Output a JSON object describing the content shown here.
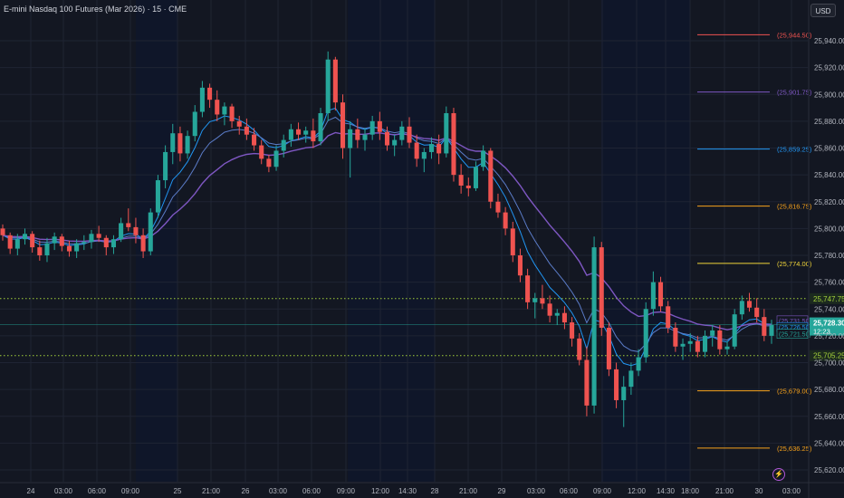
{
  "header": {
    "title": "E-mini Nasdaq 100 Futures (Mar 2026) · 15 · CME",
    "currency": "USD"
  },
  "icons": {
    "alert": "lightning-icon"
  },
  "colors": {
    "bg": "#131722",
    "session_bg": "#0f1629",
    "grid": "#1f2433",
    "up": "#26a69a",
    "down": "#ef5350",
    "ma1": "#2196f3",
    "ma2": "#5b7cc8",
    "ma3": "#7e57c2",
    "dotted": "#a3d13a",
    "current": "#26a69a"
  },
  "chart_data": {
    "type": "candlestick",
    "y_ticks": [
      "25,940.00",
      "25,920.00",
      "25,900.00",
      "25,880.00",
      "25,860.00",
      "25,840.00",
      "25,820.00",
      "25,800.00",
      "25,780.00",
      "25,760.00",
      "25,740.00",
      "25,720.00",
      "25,700.00",
      "25,680.00",
      "25,660.00",
      "25,640.00",
      "25,620.00"
    ],
    "x_ticks": [
      "24",
      "03:00",
      "06:00",
      "09:00",
      "25",
      "21:00",
      "26",
      "03:00",
      "06:00",
      "09:00",
      "12:00",
      "14:30",
      "28",
      "21:00",
      "29",
      "03:00",
      "06:00",
      "09:00",
      "12:00",
      "14:30",
      "18:00",
      "21:00",
      "30",
      "03:00"
    ],
    "levels": [
      {
        "label": "(25,944.50)",
        "value": 25944.5,
        "color": "#ef5350"
      },
      {
        "label": "(25,901.75)",
        "value": 25901.75,
        "color": "#7e57c2"
      },
      {
        "label": "(25,859.25)",
        "value": 25859.25,
        "color": "#2196f3"
      },
      {
        "label": "(25,816.75)",
        "value": 25816.75,
        "color": "#f7a21b"
      },
      {
        "label": "(25,774.00)",
        "value": 25774.0,
        "color": "#f0d43a"
      },
      {
        "label": "(25,679.00)",
        "value": 25679.0,
        "color": "#f7a21b"
      },
      {
        "label": "(25,636.25)",
        "value": 25636.25,
        "color": "#f7a21b"
      }
    ],
    "dotted_lines": [
      {
        "label": "25,747.75",
        "value": 25747.75
      },
      {
        "label": "25,705.25",
        "value": 25705.25
      }
    ],
    "overlay_labels": [
      {
        "label": "(25,731.50)",
        "value": 25731.5,
        "color": "#7e57c2"
      },
      {
        "label": "(25,726.50)",
        "value": 25726.5,
        "color": "#2196f3"
      },
      {
        "label": "(25,721.50)",
        "value": 25721.5,
        "color": "#26a69a"
      }
    ],
    "current_price": {
      "label": "25,728.30",
      "countdown": "12:23",
      "value": 25728.3
    },
    "candles": [
      [
        25800,
        25803,
        25791,
        25795
      ],
      [
        25795,
        25797,
        25781,
        25785
      ],
      [
        25785,
        25796,
        25780,
        25792
      ],
      [
        25792,
        25800,
        25788,
        25796
      ],
      [
        25796,
        25798,
        25782,
        25786
      ],
      [
        25786,
        25791,
        25776,
        25780
      ],
      [
        25780,
        25793,
        25775,
        25789
      ],
      [
        25789,
        25797,
        25784,
        25794
      ],
      [
        25794,
        25796,
        25783,
        25787
      ],
      [
        25787,
        25791,
        25779,
        25783
      ],
      [
        25783,
        25792,
        25778,
        25789
      ],
      [
        25789,
        25795,
        25784,
        25790
      ],
      [
        25790,
        25799,
        25785,
        25796
      ],
      [
        25796,
        25802,
        25790,
        25793
      ],
      [
        25793,
        25795,
        25780,
        25786
      ],
      [
        25786,
        25795,
        25781,
        25792
      ],
      [
        25792,
        25808,
        25790,
        25804
      ],
      [
        25804,
        25815,
        25798,
        25801
      ],
      [
        25801,
        25808,
        25789,
        25795
      ],
      [
        25795,
        25800,
        25778,
        25783
      ],
      [
        25783,
        25815,
        25780,
        25812
      ],
      [
        25812,
        25840,
        25808,
        25836
      ],
      [
        25836,
        25862,
        25830,
        25857
      ],
      [
        25857,
        25878,
        25848,
        25871
      ],
      [
        25871,
        25876,
        25850,
        25856
      ],
      [
        25856,
        25873,
        25852,
        25869
      ],
      [
        25869,
        25892,
        25865,
        25887
      ],
      [
        25887,
        25910,
        25883,
        25905
      ],
      [
        25905,
        25908,
        25890,
        25896
      ],
      [
        25896,
        25903,
        25880,
        25885
      ],
      [
        25885,
        25894,
        25877,
        25891
      ],
      [
        25891,
        25893,
        25875,
        25880
      ],
      [
        25880,
        25884,
        25870,
        25876
      ],
      [
        25876,
        25882,
        25866,
        25870
      ],
      [
        25870,
        25875,
        25858,
        25862
      ],
      [
        25862,
        25866,
        25848,
        25852
      ],
      [
        25852,
        25855,
        25842,
        25846
      ],
      [
        25846,
        25862,
        25843,
        25858
      ],
      [
        25858,
        25870,
        25853,
        25866
      ],
      [
        25866,
        25878,
        25861,
        25874
      ],
      [
        25874,
        25879,
        25866,
        25870
      ],
      [
        25870,
        25876,
        25864,
        25873
      ],
      [
        25873,
        25882,
        25860,
        25865
      ],
      [
        25865,
        25890,
        25862,
        25886
      ],
      [
        25886,
        25932,
        25880,
        25926
      ],
      [
        25926,
        25928,
        25888,
        25894
      ],
      [
        25894,
        25900,
        25852,
        25860
      ],
      [
        25860,
        25880,
        25838,
        25874
      ],
      [
        25874,
        25882,
        25860,
        25866
      ],
      [
        25866,
        25875,
        25858,
        25870
      ],
      [
        25870,
        25884,
        25866,
        25880
      ],
      [
        25880,
        25887,
        25866,
        25872
      ],
      [
        25872,
        25876,
        25858,
        25862
      ],
      [
        25862,
        25870,
        25854,
        25866
      ],
      [
        25866,
        25880,
        25862,
        25876
      ],
      [
        25876,
        25883,
        25860,
        25864
      ],
      [
        25864,
        25870,
        25846,
        25852
      ],
      [
        25852,
        25860,
        25842,
        25857
      ],
      [
        25857,
        25868,
        25852,
        25863
      ],
      [
        25863,
        25870,
        25848,
        25856
      ],
      [
        25856,
        25891,
        25853,
        25886
      ],
      [
        25886,
        25890,
        25835,
        25840
      ],
      [
        25840,
        25848,
        25826,
        25832
      ],
      [
        25832,
        25838,
        25824,
        25830
      ],
      [
        25830,
        25850,
        25828,
        25846
      ],
      [
        25846,
        25862,
        25843,
        25858
      ],
      [
        25858,
        25860,
        25815,
        25820
      ],
      [
        25820,
        25826,
        25808,
        25812
      ],
      [
        25812,
        25816,
        25795,
        25800
      ],
      [
        25800,
        25805,
        25775,
        25780
      ],
      [
        25780,
        25785,
        25760,
        25765
      ],
      [
        25765,
        25770,
        25740,
        25745
      ],
      [
        25745,
        25752,
        25733,
        25748
      ],
      [
        25748,
        25758,
        25740,
        25744
      ],
      [
        25744,
        25750,
        25730,
        25735
      ],
      [
        25735,
        25740,
        25728,
        25737
      ],
      [
        25737,
        25742,
        25725,
        25730
      ],
      [
        25730,
        25734,
        25712,
        25718
      ],
      [
        25718,
        25722,
        25698,
        25702
      ],
      [
        25702,
        25712,
        25660,
        25668
      ],
      [
        25668,
        25794,
        25662,
        25786
      ],
      [
        25786,
        25790,
        25720,
        25726
      ],
      [
        25726,
        25730,
        25690,
        25695
      ],
      [
        25695,
        25700,
        25666,
        25672
      ],
      [
        25672,
        25690,
        25652,
        25682
      ],
      [
        25682,
        25700,
        25676,
        25694
      ],
      [
        25694,
        25710,
        25690,
        25704
      ],
      [
        25704,
        25745,
        25700,
        25740
      ],
      [
        25740,
        25768,
        25735,
        25760
      ],
      [
        25760,
        25764,
        25738,
        25742
      ],
      [
        25742,
        25746,
        25722,
        25726
      ],
      [
        25726,
        25730,
        25708,
        25712
      ],
      [
        25712,
        25718,
        25702,
        25714
      ],
      [
        25714,
        25722,
        25708,
        25716
      ],
      [
        25716,
        25720,
        25704,
        25708
      ],
      [
        25708,
        25724,
        25704,
        25720
      ],
      [
        25720,
        25728,
        25712,
        25724
      ],
      [
        25724,
        25728,
        25706,
        25710
      ],
      [
        25710,
        25716,
        25706,
        25712
      ],
      [
        25712,
        25740,
        25710,
        25736
      ],
      [
        25736,
        25750,
        25732,
        25746
      ],
      [
        25746,
        25752,
        25738,
        25741
      ],
      [
        25741,
        25748,
        25730,
        25734
      ],
      [
        25734,
        25740,
        25716,
        25720
      ],
      [
        25720,
        25732,
        25714,
        25728
      ]
    ]
  }
}
